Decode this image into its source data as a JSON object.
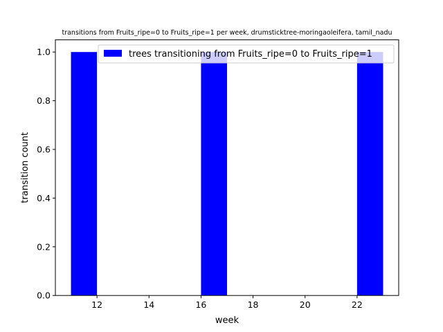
{
  "chart_data": {
    "type": "bar",
    "title": "transitions from Fruits_ripe=0 to Fruits_ripe=1 per week, drumsticktree-moringaoleifera, tamil_nadu",
    "xlabel": "week",
    "ylabel": "transition count",
    "xlim": [
      10.4,
      23.6
    ],
    "ylim": [
      0,
      1.05
    ],
    "xticks": [
      12,
      14,
      16,
      18,
      20,
      22
    ],
    "yticks": [
      0.0,
      0.2,
      0.4,
      0.6,
      0.8,
      1.0
    ],
    "xtick_labels": [
      "12",
      "14",
      "16",
      "18",
      "20",
      "22"
    ],
    "ytick_labels": [
      "0.0",
      "0.2",
      "0.4",
      "0.6",
      "0.8",
      "1.0"
    ],
    "grid": false,
    "legend_position": "top-right",
    "series": [
      {
        "name": "trees transitioning from Fruits_ripe=0 to Fruits_ripe=1",
        "color": "#0000ff",
        "bars": [
          {
            "x_start": 11,
            "x_end": 12,
            "value": 1
          },
          {
            "x_start": 16,
            "x_end": 17,
            "value": 1
          },
          {
            "x_start": 22,
            "x_end": 23,
            "value": 1
          }
        ]
      }
    ]
  }
}
